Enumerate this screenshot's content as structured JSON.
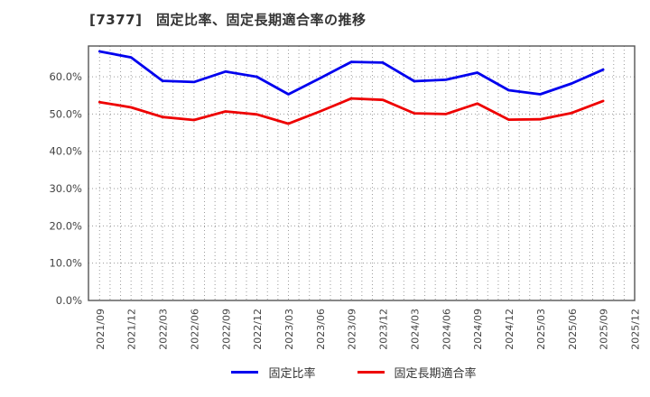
{
  "title": "[7377]　固定比率、固定長期適合率の推移",
  "legend": {
    "items": [
      {
        "label": "固定比率",
        "color": "#0000ee"
      },
      {
        "label": "固定長期適合率",
        "color": "#ee0000"
      }
    ]
  },
  "chart_data": {
    "type": "line",
    "title": "[7377] 固定比率、固定長期適合率の推移",
    "categories": [
      "2021/09",
      "2021/12",
      "2022/03",
      "2022/06",
      "2022/09",
      "2022/12",
      "2023/03",
      "2023/06",
      "2023/09",
      "2023/12",
      "2024/03",
      "2024/06",
      "2024/09",
      "2024/12",
      "2025/03",
      "2025/06",
      "2025/09",
      "2025/12"
    ],
    "series": [
      {
        "name": "固定比率",
        "color": "#0000ee",
        "values": [
          66.8,
          65.2,
          58.9,
          58.6,
          61.4,
          60.0,
          55.3,
          59.6,
          64.0,
          63.8,
          58.8,
          59.2,
          61.1,
          56.4,
          55.3,
          58.2,
          61.9
        ]
      },
      {
        "name": "固定長期適合率",
        "color": "#ee0000",
        "values": [
          53.2,
          51.8,
          49.2,
          48.4,
          50.7,
          49.9,
          47.4,
          50.7,
          54.2,
          53.8,
          50.2,
          50.0,
          52.8,
          48.5,
          48.6,
          50.3,
          53.5
        ]
      }
    ],
    "ylabel": "",
    "xlabel": "",
    "ylim": [
      0,
      68.25
    ],
    "ytick_labels": [
      "0.0%",
      "10.0%",
      "20.0%",
      "30.0%",
      "40.0%",
      "50.0%",
      "60.0%"
    ],
    "ytick_values": [
      0,
      10,
      20,
      30,
      40,
      50,
      60
    ],
    "grid": true,
    "legend_position": "bottom",
    "note_last_category_has_no_data": true
  },
  "style": {
    "grid_color": "#9a9a9a",
    "frame_color": "#555555",
    "tick_label_color": "#444444",
    "line_width": 2.8
  }
}
